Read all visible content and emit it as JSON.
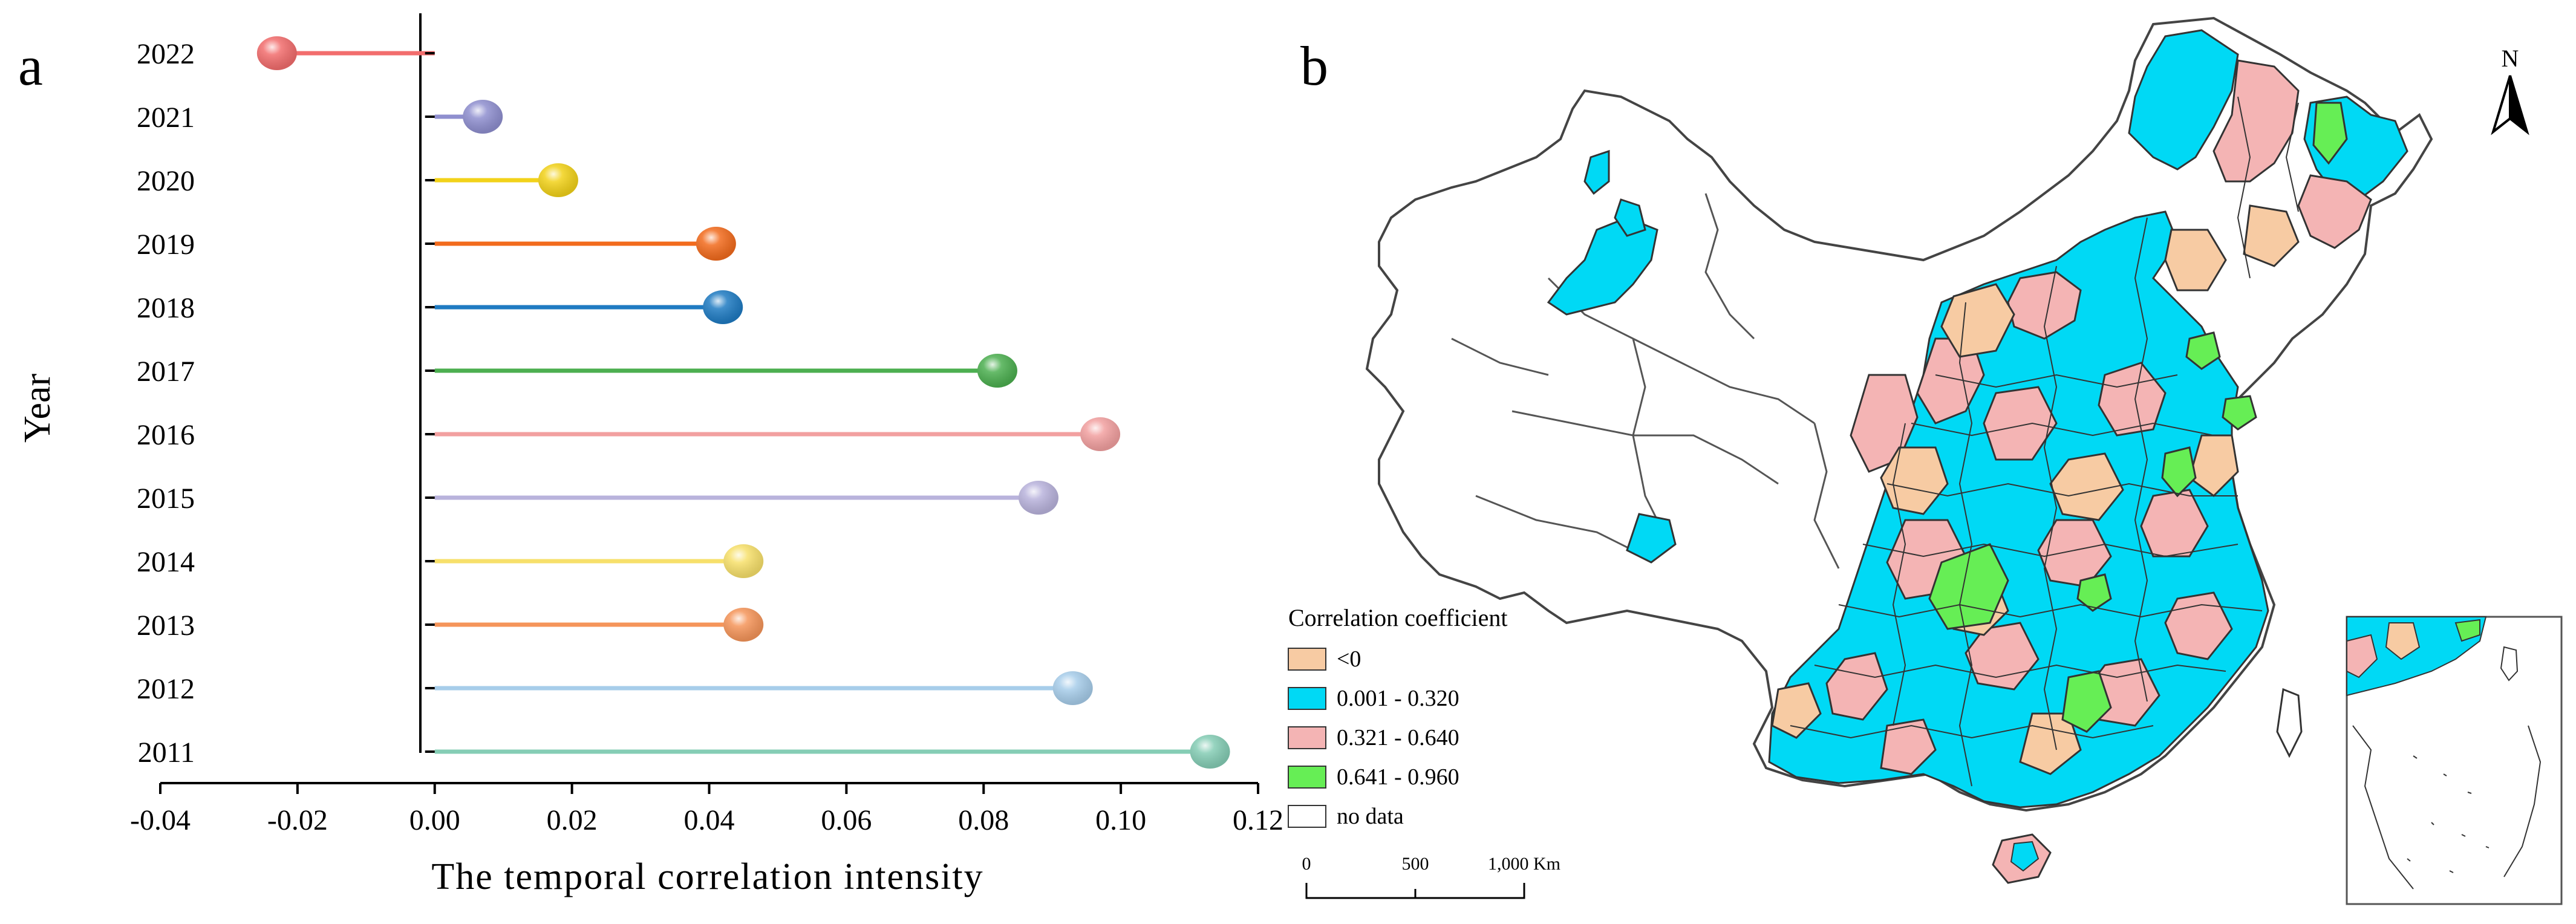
{
  "panel_a": {
    "label": "a",
    "chart_data": {
      "type": "lollipop",
      "title": "",
      "xlabel": "The temporal correlation intensity",
      "ylabel": "Year",
      "xlim": [
        -0.04,
        0.12
      ],
      "x_ticks": [
        "-0.04",
        "-0.02",
        "0.00",
        "0.02",
        "0.04",
        "0.06",
        "0.08",
        "0.10",
        "0.12"
      ],
      "x_tick_values": [
        -0.04,
        -0.02,
        0.0,
        0.02,
        0.04,
        0.06,
        0.08,
        0.1,
        0.12
      ],
      "categories": [
        "2022",
        "2021",
        "2020",
        "2019",
        "2018",
        "2017",
        "2016",
        "2015",
        "2014",
        "2013",
        "2012",
        "2011"
      ],
      "values": [
        -0.023,
        0.007,
        0.018,
        0.041,
        0.042,
        0.082,
        0.097,
        0.088,
        0.045,
        0.045,
        0.093,
        0.113
      ],
      "colors": [
        "#f26d6d",
        "#8f8fcf",
        "#f2d21a",
        "#f26b1d",
        "#1f7bc2",
        "#4caf50",
        "#f2a0a0",
        "#b9b3dc",
        "#f7e06b",
        "#f5955a",
        "#a7cdea",
        "#85cdb5"
      ]
    }
  },
  "panel_b": {
    "label": "b",
    "north_label": "N",
    "legend": {
      "title": "Correlation coefficient",
      "items": [
        {
          "label": "<0",
          "color": "#f7cba3"
        },
        {
          "label": "0.001 - 0.320",
          "color": "#00d9f5"
        },
        {
          "label": "0.321 - 0.640",
          "color": "#f4b4b4"
        },
        {
          "label": "0.641 - 0.960",
          "color": "#66ee55"
        },
        {
          "label": "no data",
          "color": "#ffffff"
        }
      ]
    },
    "scale_bar": {
      "ticks": [
        "0",
        "500",
        "1,000 Km"
      ]
    }
  }
}
